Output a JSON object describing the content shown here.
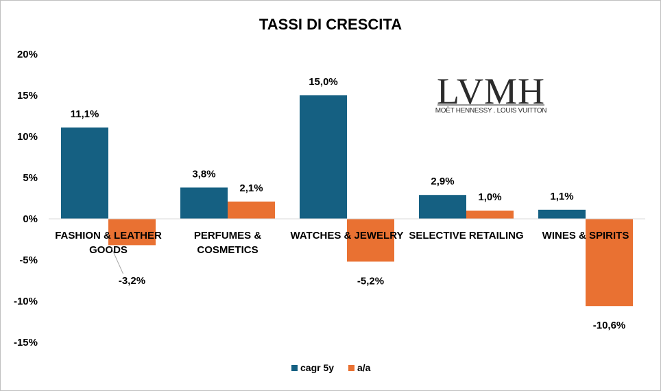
{
  "chart_data": {
    "type": "bar",
    "title": "TASSI DI CRESCITA",
    "categories": [
      [
        "FASHION & LEATHER",
        "GOODS"
      ],
      [
        "PERFUMES &",
        "COSMETICS"
      ],
      [
        "WATCHES & JEWELRY"
      ],
      [
        "SELECTIVE RETAILING"
      ],
      [
        "WINES & SPIRITS"
      ]
    ],
    "series": [
      {
        "name": "cagr 5y",
        "color": "#156082",
        "values": [
          11.1,
          3.8,
          15.0,
          2.9,
          1.1
        ],
        "labels": [
          "11,1%",
          "3,8%",
          "15,0%",
          "2,9%",
          "1,1%"
        ]
      },
      {
        "name": "a/a",
        "color": "#E97132",
        "values": [
          -3.2,
          2.1,
          -5.2,
          1.0,
          -10.6
        ],
        "labels": [
          "-3,2%",
          "2,1%",
          "-5,2%",
          "1,0%",
          "-10,6%"
        ]
      }
    ],
    "ylim": [
      -15,
      20
    ],
    "yticks": [
      20,
      15,
      10,
      5,
      0,
      -5,
      -10,
      -15
    ],
    "ytick_labels": [
      "20%",
      "15%",
      "10%",
      "5%",
      "0%",
      "-5%",
      "-10%",
      "-15%"
    ],
    "grid": false,
    "legend_position": "bottom-center"
  },
  "logo": {
    "text": "LVMH",
    "subtext": "MOËT HENNESSY . LOUIS VUITTON"
  }
}
